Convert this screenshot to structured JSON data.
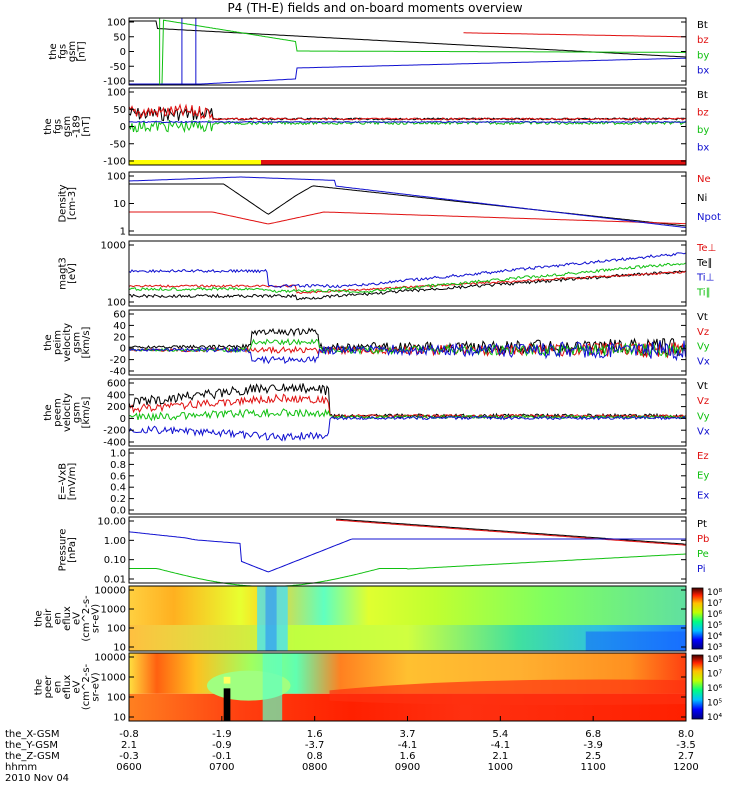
{
  "title": "P4 (TH-E) fields and on-board moments overview",
  "date_label": "2010 Nov 04",
  "colors": {
    "black": "#000000",
    "red": "#e01010",
    "green": "#10c010",
    "blue": "#1010d0",
    "yellow": "#ffff00"
  },
  "chart_data": [
    {
      "id": "fgs",
      "type": "line",
      "ylabel": [
        "the",
        "fgs",
        "gsm",
        "[nT]"
      ],
      "yticks": [
        "100",
        "50",
        "0",
        "-50",
        "-100"
      ],
      "ylim": [
        -100,
        110
      ],
      "legend": [
        {
          "name": "Bt",
          "color": "black"
        },
        {
          "name": "bz",
          "color": "red"
        },
        {
          "name": "by",
          "color": "green"
        },
        {
          "name": "bx",
          "color": "blue"
        }
      ]
    },
    {
      "id": "fgs2",
      "type": "line",
      "ylabel": [
        "the",
        "fgs",
        "gsm",
        "-189",
        "[nT]"
      ],
      "yticks": [
        "100",
        "50",
        "0",
        "-50",
        "-100"
      ],
      "ylim": [
        -120,
        110
      ],
      "legend": [
        {
          "name": "Bt",
          "color": "black"
        },
        {
          "name": "bz",
          "color": "red"
        },
        {
          "name": "by",
          "color": "green"
        },
        {
          "name": "bx",
          "color": "blue"
        }
      ],
      "status_bar": [
        {
          "from": 0,
          "to": 0.237,
          "color": "yellow"
        },
        {
          "from": 0.237,
          "to": 1,
          "color": "red"
        }
      ]
    },
    {
      "id": "density",
      "type": "line",
      "scale": "log",
      "ylabel": [
        "Density",
        "[cm-3]"
      ],
      "yticks": [
        "100",
        "10",
        "1"
      ],
      "legend": [
        {
          "name": "Ne",
          "color": "red"
        },
        {
          "name": "Ni",
          "color": "black"
        },
        {
          "name": "Npot",
          "color": "blue"
        }
      ]
    },
    {
      "id": "temp",
      "type": "line",
      "scale": "log",
      "ylabel": [
        "magt3",
        "[eV]"
      ],
      "yticks": [
        "1000",
        "100"
      ],
      "legend": [
        {
          "name": "Te⊥",
          "color": "red"
        },
        {
          "name": "Te∥",
          "color": "black"
        },
        {
          "name": "Ti⊥",
          "color": "blue"
        },
        {
          "name": "Ti∥",
          "color": "green"
        }
      ]
    },
    {
      "id": "peim",
      "type": "line",
      "ylabel": [
        "the",
        "peim",
        "velocity",
        "gsm",
        "[km/s]"
      ],
      "yticks": [
        "60",
        "40",
        "20",
        "0",
        "-20",
        "-40"
      ],
      "legend": [
        {
          "name": "Vt",
          "color": "black"
        },
        {
          "name": "Vz",
          "color": "red"
        },
        {
          "name": "Vy",
          "color": "green"
        },
        {
          "name": "Vx",
          "color": "blue"
        }
      ]
    },
    {
      "id": "peem",
      "type": "line",
      "ylabel": [
        "the",
        "peem",
        "velocity",
        "gsm",
        "[km/s]"
      ],
      "yticks": [
        "600",
        "400",
        "200",
        "0",
        "-200",
        "-400"
      ],
      "legend": [
        {
          "name": "Vt",
          "color": "black"
        },
        {
          "name": "Vz",
          "color": "red"
        },
        {
          "name": "Vy",
          "color": "green"
        },
        {
          "name": "Vx",
          "color": "blue"
        }
      ]
    },
    {
      "id": "efield",
      "type": "line",
      "ylabel": [
        "E=-VxB",
        "[mV/m]"
      ],
      "yticks": [
        "1.0",
        "0.8",
        "0.6",
        "0.4",
        "0.2",
        "0.0"
      ],
      "legend": [
        {
          "name": "Ez",
          "color": "red"
        },
        {
          "name": "Ey",
          "color": "green"
        },
        {
          "name": "Ex",
          "color": "blue"
        }
      ]
    },
    {
      "id": "pressure",
      "type": "line",
      "scale": "log",
      "ylabel": [
        "Pressure",
        "[nPa]"
      ],
      "yticks": [
        "10.00",
        "1.00",
        "0.10",
        "0.01"
      ],
      "legend": [
        {
          "name": "Pt",
          "color": "black"
        },
        {
          "name": "Pb",
          "color": "red"
        },
        {
          "name": "Pe",
          "color": "green"
        },
        {
          "name": "Pi",
          "color": "blue"
        }
      ]
    },
    {
      "id": "peir",
      "type": "heatmap",
      "ylabel": [
        "the",
        "peir",
        "en",
        "eflux",
        "eV",
        "(cm^2-s-",
        "sr-eV)"
      ],
      "yticks": [
        "10000",
        "1000",
        "100",
        "10"
      ],
      "colorbar": [
        "10⁸",
        "10⁷",
        "10⁶",
        "10⁵",
        "10⁴",
        "10³"
      ]
    },
    {
      "id": "peer",
      "type": "heatmap",
      "ylabel": [
        "the",
        "peer",
        "en",
        "eflux",
        "eV",
        "(cm^2-s-",
        "sr-eV)"
      ],
      "yticks": [
        "10000",
        "1000",
        "100",
        "10"
      ],
      "colorbar": [
        "10⁸",
        "10⁷",
        "10⁶",
        "10⁵",
        "10⁴"
      ]
    }
  ],
  "x_axis": {
    "row_labels": [
      "the_X-GSM",
      "the_Y-GSM",
      "the_Z-GSM",
      "hhmm"
    ],
    "columns": [
      [
        "-0.8",
        "2.1",
        "-0.3",
        "0600"
      ],
      [
        "-1.9",
        "-0.9",
        "-0.1",
        "0700"
      ],
      [
        "1.6",
        "-3.7",
        "0.8",
        "0800"
      ],
      [
        "3.7",
        "-4.1",
        "1.6",
        "0900"
      ],
      [
        "5.4",
        "-4.1",
        "2.1",
        "1000"
      ],
      [
        "6.8",
        "-3.9",
        "2.5",
        "1100"
      ],
      [
        "8.0",
        "-3.5",
        "2.7",
        "1200"
      ]
    ]
  }
}
